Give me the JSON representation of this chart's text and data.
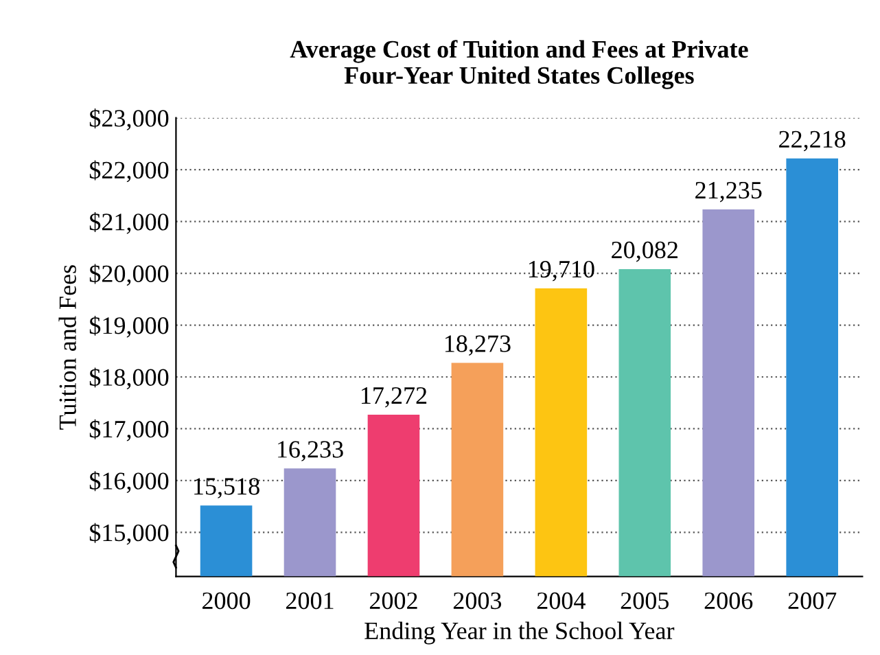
{
  "chart_data": {
    "type": "bar",
    "title": "Average Cost of Tuition and Fees at Private\nFour-Year United States Colleges",
    "xlabel": "Ending Year in the School Year",
    "ylabel": "Tuition and Fees",
    "categories": [
      "2000",
      "2001",
      "2002",
      "2003",
      "2004",
      "2005",
      "2006",
      "2007"
    ],
    "values": [
      15518,
      16233,
      17272,
      18273,
      19710,
      20082,
      21235,
      22218
    ],
    "colors": [
      "#2b8fd6",
      "#9b97cc",
      "#ee3d6f",
      "#f5a05a",
      "#fdc512",
      "#5ec4ac",
      "#9b97cc",
      "#2b8fd6"
    ],
    "ylim": [
      14150,
      23000
    ],
    "yticks": [
      {
        "value": 15000,
        "label": "$15,000"
      },
      {
        "value": 16000,
        "label": "$16,000"
      },
      {
        "value": 17000,
        "label": "$17,000"
      },
      {
        "value": 18000,
        "label": "$18,000"
      },
      {
        "value": 19000,
        "label": "$19,000"
      },
      {
        "value": 20000,
        "label": "$20,000"
      },
      {
        "value": 21000,
        "label": "$21,000"
      },
      {
        "value": 22000,
        "label": "$22,000"
      },
      {
        "value": 23000,
        "label": "$23,000"
      }
    ],
    "value_labels": [
      "15,518",
      "16,233",
      "17,272",
      "18,273",
      "19,710",
      "20,082",
      "21,235",
      "22,218"
    ],
    "grid": "y"
  }
}
